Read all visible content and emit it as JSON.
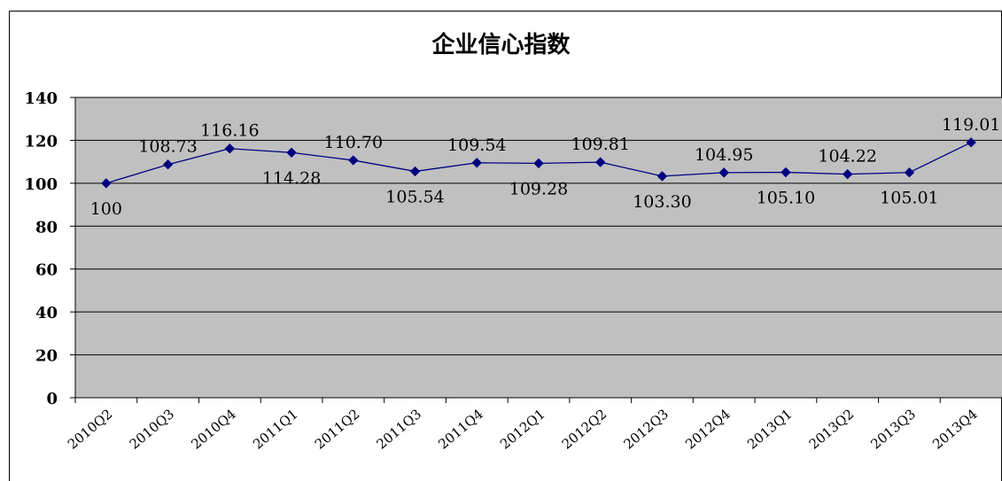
{
  "chart_data": {
    "type": "line",
    "title": "企业信心指数",
    "xlabel": "",
    "ylabel": "",
    "categories": [
      "2010Q2",
      "2010Q3",
      "2010Q4",
      "2011Q1",
      "2011Q2",
      "2011Q3",
      "2011Q4",
      "2012Q1",
      "2012Q2",
      "2012Q3",
      "2012Q4",
      "2013Q1",
      "2013Q2",
      "2013Q3",
      "2013Q4"
    ],
    "values": [
      100,
      108.73,
      116.16,
      114.28,
      110.7,
      105.54,
      109.54,
      109.28,
      109.81,
      103.3,
      104.95,
      105.1,
      104.22,
      105.01,
      119.01
    ],
    "data_labels": [
      "100",
      "108.73",
      "116.16",
      "114.28",
      "110.70",
      "105.54",
      "109.54",
      "109.28",
      "109.81",
      "103.30",
      "104.95",
      "105.10",
      "104.22",
      "105.01",
      "119.01"
    ],
    "label_positions": [
      "below",
      "above",
      "above",
      "below",
      "above",
      "below",
      "above",
      "below",
      "above",
      "below",
      "above",
      "below",
      "above",
      "below",
      "above"
    ],
    "ylim": [
      0,
      140
    ],
    "yticks": [
      0,
      20,
      40,
      60,
      80,
      100,
      120,
      140
    ],
    "grid": true,
    "legend": "none",
    "colors": {
      "line": "#000080",
      "marker": "#000080",
      "plot_background": "#c0c0c0",
      "gridline": "#000000"
    }
  }
}
